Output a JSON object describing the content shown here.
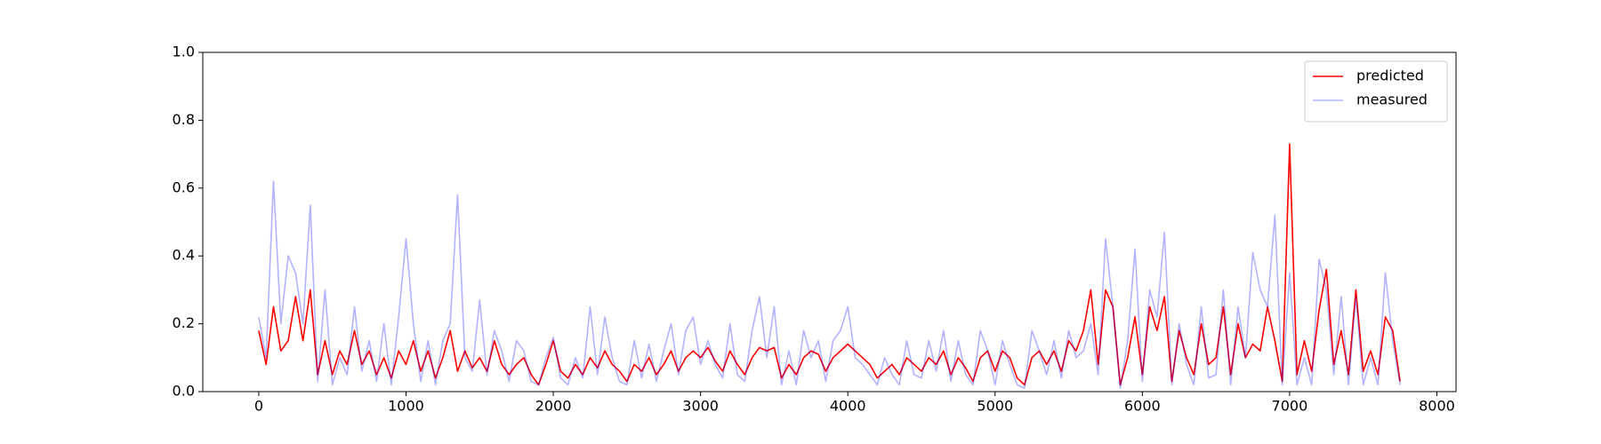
{
  "chart_data": {
    "type": "line",
    "x": [
      0,
      50,
      100,
      150,
      200,
      250,
      300,
      350,
      400,
      450,
      500,
      550,
      600,
      650,
      700,
      750,
      800,
      850,
      900,
      950,
      1000,
      1050,
      1100,
      1150,
      1200,
      1250,
      1300,
      1350,
      1400,
      1450,
      1500,
      1550,
      1600,
      1650,
      1700,
      1750,
      1800,
      1850,
      1900,
      1950,
      2000,
      2050,
      2100,
      2150,
      2200,
      2250,
      2300,
      2350,
      2400,
      2450,
      2500,
      2550,
      2600,
      2650,
      2700,
      2750,
      2800,
      2850,
      2900,
      2950,
      3000,
      3050,
      3100,
      3150,
      3200,
      3250,
      3300,
      3350,
      3400,
      3450,
      3500,
      3550,
      3600,
      3650,
      3700,
      3750,
      3800,
      3850,
      3900,
      3950,
      4000,
      4050,
      4100,
      4150,
      4200,
      4250,
      4300,
      4350,
      4400,
      4450,
      4500,
      4550,
      4600,
      4650,
      4700,
      4750,
      4800,
      4850,
      4900,
      4950,
      5000,
      5050,
      5100,
      5150,
      5200,
      5250,
      5300,
      5350,
      5400,
      5450,
      5500,
      5550,
      5600,
      5650,
      5700,
      5750,
      5800,
      5850,
      5900,
      5950,
      6000,
      6050,
      6100,
      6150,
      6200,
      6250,
      6300,
      6350,
      6400,
      6450,
      6500,
      6550,
      6600,
      6650,
      6700,
      6750,
      6800,
      6850,
      6900,
      6950,
      7000,
      7050,
      7100,
      7150,
      7200,
      7250,
      7300,
      7350,
      7400,
      7450,
      7500,
      7550,
      7600,
      7650,
      7700,
      7750
    ],
    "series": [
      {
        "name": "predicted",
        "color": "#ff0000",
        "opacity": 1,
        "values": [
          0.18,
          0.08,
          0.25,
          0.12,
          0.15,
          0.28,
          0.15,
          0.3,
          0.05,
          0.15,
          0.05,
          0.12,
          0.08,
          0.18,
          0.08,
          0.12,
          0.05,
          0.1,
          0.04,
          0.12,
          0.08,
          0.15,
          0.06,
          0.12,
          0.04,
          0.1,
          0.18,
          0.06,
          0.12,
          0.07,
          0.1,
          0.06,
          0.15,
          0.08,
          0.05,
          0.08,
          0.1,
          0.05,
          0.02,
          0.08,
          0.15,
          0.06,
          0.04,
          0.08,
          0.05,
          0.1,
          0.07,
          0.12,
          0.08,
          0.06,
          0.03,
          0.08,
          0.06,
          0.1,
          0.05,
          0.08,
          0.12,
          0.06,
          0.1,
          0.12,
          0.1,
          0.13,
          0.09,
          0.06,
          0.12,
          0.08,
          0.05,
          0.1,
          0.13,
          0.12,
          0.13,
          0.04,
          0.08,
          0.05,
          0.1,
          0.12,
          0.11,
          0.06,
          0.1,
          0.12,
          0.14,
          0.12,
          0.1,
          0.08,
          0.04,
          0.06,
          0.08,
          0.05,
          0.1,
          0.08,
          0.06,
          0.1,
          0.08,
          0.12,
          0.05,
          0.1,
          0.07,
          0.03,
          0.1,
          0.12,
          0.06,
          0.12,
          0.1,
          0.04,
          0.02,
          0.1,
          0.12,
          0.08,
          0.12,
          0.06,
          0.15,
          0.12,
          0.18,
          0.3,
          0.08,
          0.3,
          0.25,
          0.02,
          0.1,
          0.22,
          0.05,
          0.25,
          0.18,
          0.28,
          0.03,
          0.18,
          0.1,
          0.05,
          0.2,
          0.08,
          0.1,
          0.25,
          0.05,
          0.2,
          0.1,
          0.14,
          0.12,
          0.25,
          0.15,
          0.03,
          0.73,
          0.05,
          0.15,
          0.06,
          0.24,
          0.36,
          0.08,
          0.18,
          0.05,
          0.3,
          0.06,
          0.12,
          0.05,
          0.22,
          0.18,
          0.03
        ]
      },
      {
        "name": "measured",
        "color": "#0000ff",
        "opacity": 0.3,
        "values": [
          0.22,
          0.1,
          0.62,
          0.2,
          0.4,
          0.35,
          0.2,
          0.55,
          0.03,
          0.3,
          0.02,
          0.1,
          0.05,
          0.25,
          0.06,
          0.15,
          0.03,
          0.2,
          0.02,
          0.22,
          0.45,
          0.2,
          0.03,
          0.15,
          0.02,
          0.15,
          0.2,
          0.58,
          0.1,
          0.06,
          0.27,
          0.05,
          0.18,
          0.12,
          0.03,
          0.15,
          0.12,
          0.03,
          0.02,
          0.1,
          0.16,
          0.04,
          0.02,
          0.1,
          0.04,
          0.25,
          0.05,
          0.22,
          0.1,
          0.03,
          0.02,
          0.15,
          0.04,
          0.14,
          0.03,
          0.12,
          0.2,
          0.05,
          0.18,
          0.22,
          0.08,
          0.15,
          0.08,
          0.04,
          0.2,
          0.05,
          0.03,
          0.18,
          0.28,
          0.1,
          0.25,
          0.02,
          0.12,
          0.02,
          0.18,
          0.1,
          0.15,
          0.03,
          0.15,
          0.18,
          0.25,
          0.1,
          0.08,
          0.05,
          0.02,
          0.1,
          0.05,
          0.02,
          0.15,
          0.05,
          0.04,
          0.15,
          0.06,
          0.18,
          0.03,
          0.15,
          0.05,
          0.02,
          0.18,
          0.12,
          0.02,
          0.15,
          0.08,
          0.02,
          0.01,
          0.18,
          0.12,
          0.05,
          0.15,
          0.04,
          0.18,
          0.1,
          0.12,
          0.2,
          0.05,
          0.45,
          0.25,
          0.01,
          0.15,
          0.42,
          0.03,
          0.3,
          0.22,
          0.47,
          0.02,
          0.2,
          0.08,
          0.02,
          0.25,
          0.04,
          0.05,
          0.3,
          0.02,
          0.25,
          0.1,
          0.41,
          0.3,
          0.25,
          0.52,
          0.02,
          0.35,
          0.02,
          0.1,
          0.02,
          0.39,
          0.3,
          0.05,
          0.28,
          0.02,
          0.28,
          0.02,
          0.1,
          0.02,
          0.35,
          0.15,
          0.02
        ]
      }
    ],
    "xlim": [
      -380,
      8130
    ],
    "ylim": [
      0,
      1
    ],
    "xticks": [
      0,
      1000,
      2000,
      3000,
      4000,
      5000,
      6000,
      7000,
      8000
    ],
    "yticks": [
      {
        "value": 0,
        "label": "0.0"
      },
      0.2,
      0.4,
      0.6,
      0.8,
      {
        "value": 1,
        "label": "1.0"
      }
    ],
    "legend": "upper right"
  }
}
